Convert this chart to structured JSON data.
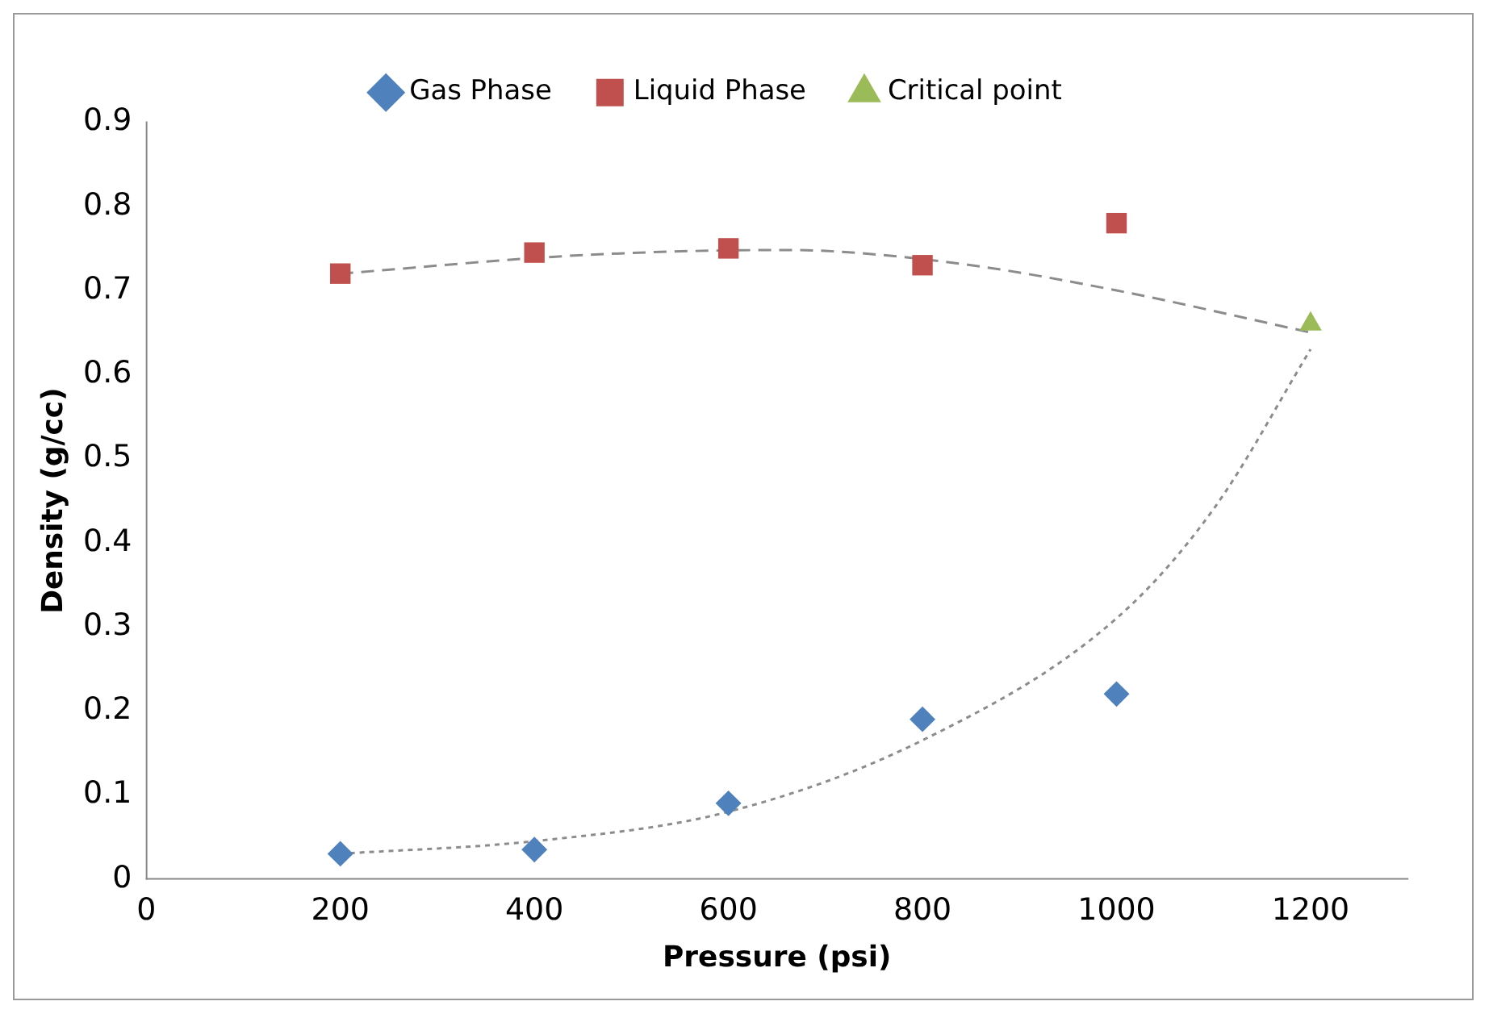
{
  "chart_data": {
    "type": "scatter",
    "xlabel": "Pressure (psi)",
    "ylabel": "Density (g/cc)",
    "xlim": [
      0,
      1300
    ],
    "xticks": [
      0,
      200,
      400,
      600,
      800,
      1000,
      1200
    ],
    "ylim": [
      0,
      0.9
    ],
    "yticks": [
      0,
      0.1,
      0.2,
      0.3,
      0.4,
      0.5,
      0.6,
      0.7,
      0.8,
      0.9
    ],
    "grid": false,
    "legend": "top",
    "series": [
      {
        "name": "Gas Phase",
        "color": "#4f81bd",
        "marker": "diamond",
        "x": [
          200,
          400,
          600,
          800,
          1000
        ],
        "values": [
          0.03,
          0.035,
          0.09,
          0.19,
          0.22
        ]
      },
      {
        "name": "Liquid Phase",
        "color": "#c0504d",
        "marker": "square",
        "x": [
          200,
          400,
          600,
          800,
          1000
        ],
        "values": [
          0.72,
          0.745,
          0.75,
          0.73,
          0.78
        ]
      },
      {
        "name": "Critical point",
        "color": "#9bbb59",
        "marker": "triangle",
        "x": [
          1200
        ],
        "values": [
          0.66
        ]
      },
      {
        "type": "line",
        "color": "#8c8c8c",
        "line_style": "dashed",
        "marker": "none",
        "x": [
          200,
          450,
          650,
          700,
          850,
          1000,
          1200
        ],
        "values": [
          0.72,
          0.742,
          0.748,
          0.747,
          0.73,
          0.7,
          0.65
        ]
      },
      {
        "type": "line",
        "color": "#8c8c8c",
        "line_style": "dotted",
        "marker": "none",
        "x": [
          200,
          400,
          600,
          800,
          1000,
          1100,
          1200
        ],
        "values": [
          0.03,
          0.045,
          0.08,
          0.165,
          0.31,
          0.44,
          0.63
        ]
      }
    ]
  }
}
